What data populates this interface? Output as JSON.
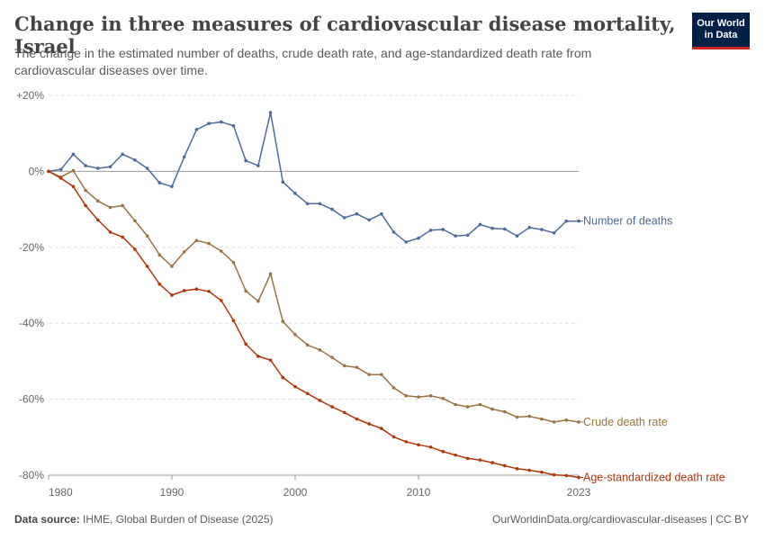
{
  "header": {
    "title": "Change in three measures of cardiovascular disease mortality, Israel",
    "subtitle": "The change in the estimated number of deaths, crude death rate, and age-standardized death rate from cardiovascular diseases over time.",
    "logo_line1": "Our World",
    "logo_line2": "in Data"
  },
  "footer": {
    "source_label": "Data source:",
    "source_text": "IHME, Global Burden of Disease (2025)",
    "url_license": "OurWorldinData.org/cardiovascular-diseases | CC BY"
  },
  "colors": {
    "deaths": "#4c6a9c",
    "crude": "#9a7340",
    "age_std": "#b13507",
    "grid": "#dddddd",
    "zero_line": "#9a9a9a",
    "text": "#666666"
  },
  "chart_data": {
    "type": "line",
    "xlabel": "",
    "ylabel": "",
    "xlim": [
      1980,
      2023
    ],
    "ylim": [
      -80,
      20
    ],
    "x_ticks": [
      "1980",
      "1990",
      "2000",
      "2010",
      "2023"
    ],
    "y_ticks": [
      {
        "value": 20,
        "label": "+20%"
      },
      {
        "value": 0,
        "label": "0%"
      },
      {
        "value": -20,
        "label": "-20%"
      },
      {
        "value": -40,
        "label": "-40%"
      },
      {
        "value": -60,
        "label": "-60%"
      },
      {
        "value": -80,
        "label": "-80%"
      }
    ],
    "grid": true,
    "x": [
      1980,
      1981,
      1982,
      1983,
      1984,
      1985,
      1986,
      1987,
      1988,
      1989,
      1990,
      1991,
      1992,
      1993,
      1994,
      1995,
      1996,
      1997,
      1998,
      1999,
      2000,
      2001,
      2002,
      2003,
      2004,
      2005,
      2006,
      2007,
      2008,
      2009,
      2010,
      2011,
      2012,
      2013,
      2014,
      2015,
      2016,
      2017,
      2018,
      2019,
      2020,
      2021,
      2022,
      2023
    ],
    "series": [
      {
        "name": "Number of deaths",
        "color_key": "deaths",
        "values": [
          0,
          0.5,
          4.5,
          1.5,
          0.8,
          1.2,
          4.5,
          3,
          0.8,
          -3,
          -4,
          3.8,
          11,
          12.6,
          13,
          12,
          2.8,
          1.5,
          15.5,
          -2.8,
          -5.8,
          -8.5,
          -8.5,
          -10,
          -12.2,
          -11.2,
          -12.8,
          -11.2,
          -16,
          -18.6,
          -17.6,
          -15.5,
          -15.3,
          -17,
          -16.8,
          -14,
          -15,
          -15.2,
          -17,
          -14.8,
          -15.3,
          -16.2,
          -13.1,
          -13.1
        ]
      },
      {
        "name": "Crude death rate",
        "color_key": "crude",
        "values": [
          0,
          -1.5,
          0.2,
          -5,
          -7.8,
          -9.5,
          -9,
          -13,
          -17,
          -22,
          -25,
          -21.2,
          -18.2,
          -19,
          -21,
          -24,
          -31.5,
          -34.2,
          -27,
          -39.5,
          -43,
          -45.7,
          -47,
          -49,
          -51.2,
          -51.6,
          -53.5,
          -53.5,
          -57,
          -59.1,
          -59.4,
          -59.1,
          -59.8,
          -61.4,
          -62,
          -61.4,
          -62.6,
          -63.3,
          -64.7,
          -64.5,
          -65.2,
          -66,
          -65.5,
          -66
        ]
      },
      {
        "name": "Age-standardized death rate",
        "color_key": "age_std",
        "values": [
          0,
          -1.8,
          -4,
          -9,
          -12.8,
          -16,
          -17.3,
          -20.5,
          -25,
          -29.7,
          -32.6,
          -31.4,
          -31,
          -31.6,
          -34,
          -39.3,
          -45.5,
          -48.7,
          -49.7,
          -54.3,
          -56.7,
          -58.5,
          -60.3,
          -62,
          -63.5,
          -65.2,
          -66.5,
          -67.7,
          -69.9,
          -71.2,
          -72,
          -72.6,
          -73.8,
          -74.7,
          -75.6,
          -76,
          -76.7,
          -77.5,
          -78.3,
          -78.7,
          -79.2,
          -79.9,
          -80.1,
          -80.6
        ]
      }
    ]
  }
}
